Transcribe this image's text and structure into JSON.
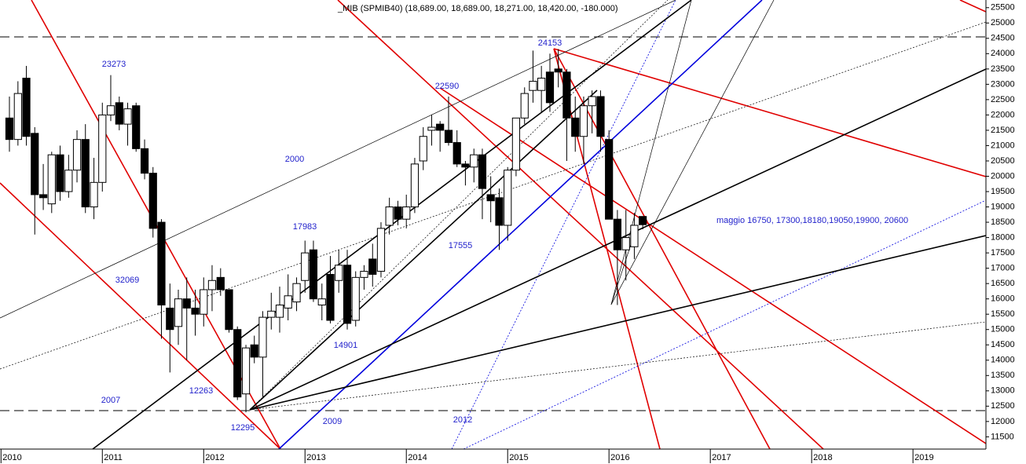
{
  "chart_data": {
    "type": "candlestick",
    "title": "_MIB (SPMIB40) (18,689.00, 18,689.00, 18,271.00, 18,420.00, -180.000)",
    "x": [
      2010.083,
      2010.167,
      2010.25,
      2010.333,
      2010.417,
      2010.5,
      2010.583,
      2010.667,
      2010.75,
      2010.833,
      2010.917,
      2011,
      2011.083,
      2011.167,
      2011.25,
      2011.333,
      2011.417,
      2011.5,
      2011.583,
      2011.667,
      2011.75,
      2011.833,
      2011.917,
      2012,
      2012.083,
      2012.167,
      2012.25,
      2012.333,
      2012.417,
      2012.5,
      2012.583,
      2012.667,
      2012.75,
      2012.833,
      2012.917,
      2013,
      2013.083,
      2013.167,
      2013.25,
      2013.333,
      2013.417,
      2013.5,
      2013.583,
      2013.667,
      2013.75,
      2013.833,
      2013.917,
      2014,
      2014.083,
      2014.167,
      2014.25,
      2014.333,
      2014.417,
      2014.5,
      2014.583,
      2014.667,
      2014.75,
      2014.833,
      2014.917,
      2015,
      2015.083,
      2015.167,
      2015.25,
      2015.333,
      2015.417,
      2015.5,
      2015.583,
      2015.667,
      2015.75,
      2015.833,
      2015.917,
      2016,
      2016.083,
      2016.167,
      2016.25,
      2016.333
    ],
    "open": [
      21900,
      21200,
      23200,
      21400,
      19400,
      19100,
      20700,
      19500,
      20200,
      21200,
      19000,
      19800,
      22000,
      22400,
      21700,
      22300,
      20900,
      20100,
      18500,
      15700,
      15100,
      16000,
      15700,
      15500,
      16300,
      16700,
      16300,
      15000,
      12900,
      14500,
      14100,
      15400,
      15400,
      15700,
      15900,
      16600,
      17600,
      15800,
      16800,
      16600,
      17100,
      15300,
      16700,
      17300,
      16900,
      18400,
      19000,
      18600,
      19000,
      20500,
      21500,
      21700,
      21500,
      21100,
      20400,
      20300,
      20700,
      19400,
      19300,
      18400,
      20200,
      21900,
      22800,
      22800,
      23400,
      23500,
      23400,
      21900,
      21300,
      22300,
      22600,
      21200,
      18600,
      17600,
      17700,
      18689
    ],
    "high": [
      22600,
      23100,
      23600,
      21600,
      20400,
      20800,
      21000,
      20700,
      21500,
      21700,
      20600,
      22400,
      23300,
      22600,
      22400,
      22400,
      21200,
      20300,
      18600,
      16500,
      16300,
      16700,
      16300,
      16700,
      17100,
      17000,
      16300,
      15100,
      14500,
      14800,
      15600,
      16200,
      16400,
      16800,
      16700,
      17900,
      17900,
      16500,
      17400,
      17600,
      17600,
      16900,
      17100,
      17800,
      18500,
      19300,
      19200,
      19400,
      20600,
      21600,
      22000,
      21800,
      22600,
      21500,
      20500,
      20900,
      20900,
      20000,
      19600,
      20300,
      21800,
      22900,
      24100,
      23600,
      24000,
      24150,
      23500,
      22600,
      22600,
      22800,
      22800,
      21500,
      18900,
      18900,
      18800,
      18689
    ],
    "low": [
      20800,
      21000,
      21000,
      18100,
      18900,
      18800,
      19200,
      19300,
      19800,
      18800,
      18600,
      19500,
      21800,
      21500,
      21000,
      20800,
      19900,
      18000,
      14700,
      13600,
      14500,
      14000,
      14800,
      15100,
      15600,
      16100,
      14900,
      12700,
      12300,
      13900,
      12800,
      15000,
      14900,
      15300,
      15600,
      16200,
      15900,
      15300,
      15200,
      16200,
      15000,
      15100,
      16300,
      16400,
      16700,
      18100,
      18400,
      18300,
      18800,
      20200,
      21000,
      20800,
      21000,
      20300,
      19700,
      19800,
      18600,
      18500,
      17600,
      17900,
      20000,
      21700,
      22400,
      22100,
      22100,
      22900,
      20500,
      20800,
      20400,
      21400,
      20800,
      18700,
      15800,
      16600,
      17300,
      18271
    ],
    "close": [
      21200,
      22700,
      21300,
      19400,
      19300,
      20700,
      19500,
      20200,
      21200,
      19000,
      19800,
      22000,
      22300,
      21700,
      22200,
      20900,
      20100,
      18300,
      15800,
      15000,
      16000,
      15700,
      15500,
      16300,
      16600,
      16300,
      15000,
      12800,
      14400,
      14100,
      15400,
      15600,
      15800,
      16100,
      16500,
      17500,
      16000,
      16000,
      15300,
      17100,
      15200,
      16700,
      16900,
      16800,
      18300,
      19000,
      18600,
      19000,
      20400,
      21300,
      21600,
      21500,
      21100,
      20400,
      20300,
      20700,
      19600,
      19200,
      18400,
      20200,
      21900,
      22700,
      23100,
      23200,
      22400,
      23400,
      21900,
      21300,
      22300,
      22600,
      21300,
      18600,
      17600,
      18000,
      18400,
      18420
    ],
    "up_color": "#ffffff",
    "down_color": "#000000",
    "xlim": [
      2009.99,
      2019.72
    ],
    "xticks": [
      2010,
      2011,
      2012,
      2013,
      2014,
      2015,
      2016,
      2017,
      2018,
      2019
    ],
    "ylim": [
      11100,
      25750
    ],
    "yticks": [
      11500,
      12000,
      12500,
      13000,
      13500,
      14000,
      14500,
      15000,
      15500,
      16000,
      16500,
      17000,
      17500,
      18000,
      18500,
      19000,
      19500,
      20000,
      20500,
      21000,
      21500,
      22000,
      22500,
      23000,
      23500,
      24000,
      24500,
      25000,
      25500
    ],
    "annotations": [
      "23273",
      "2000",
      "17983",
      "32069",
      "2007",
      "12263",
      "12295",
      "14901",
      "2009",
      "2012",
      "17555",
      "22590",
      "24153",
      "maggio 16750, 17300,18180,19050,19900, 20600"
    ]
  }
}
